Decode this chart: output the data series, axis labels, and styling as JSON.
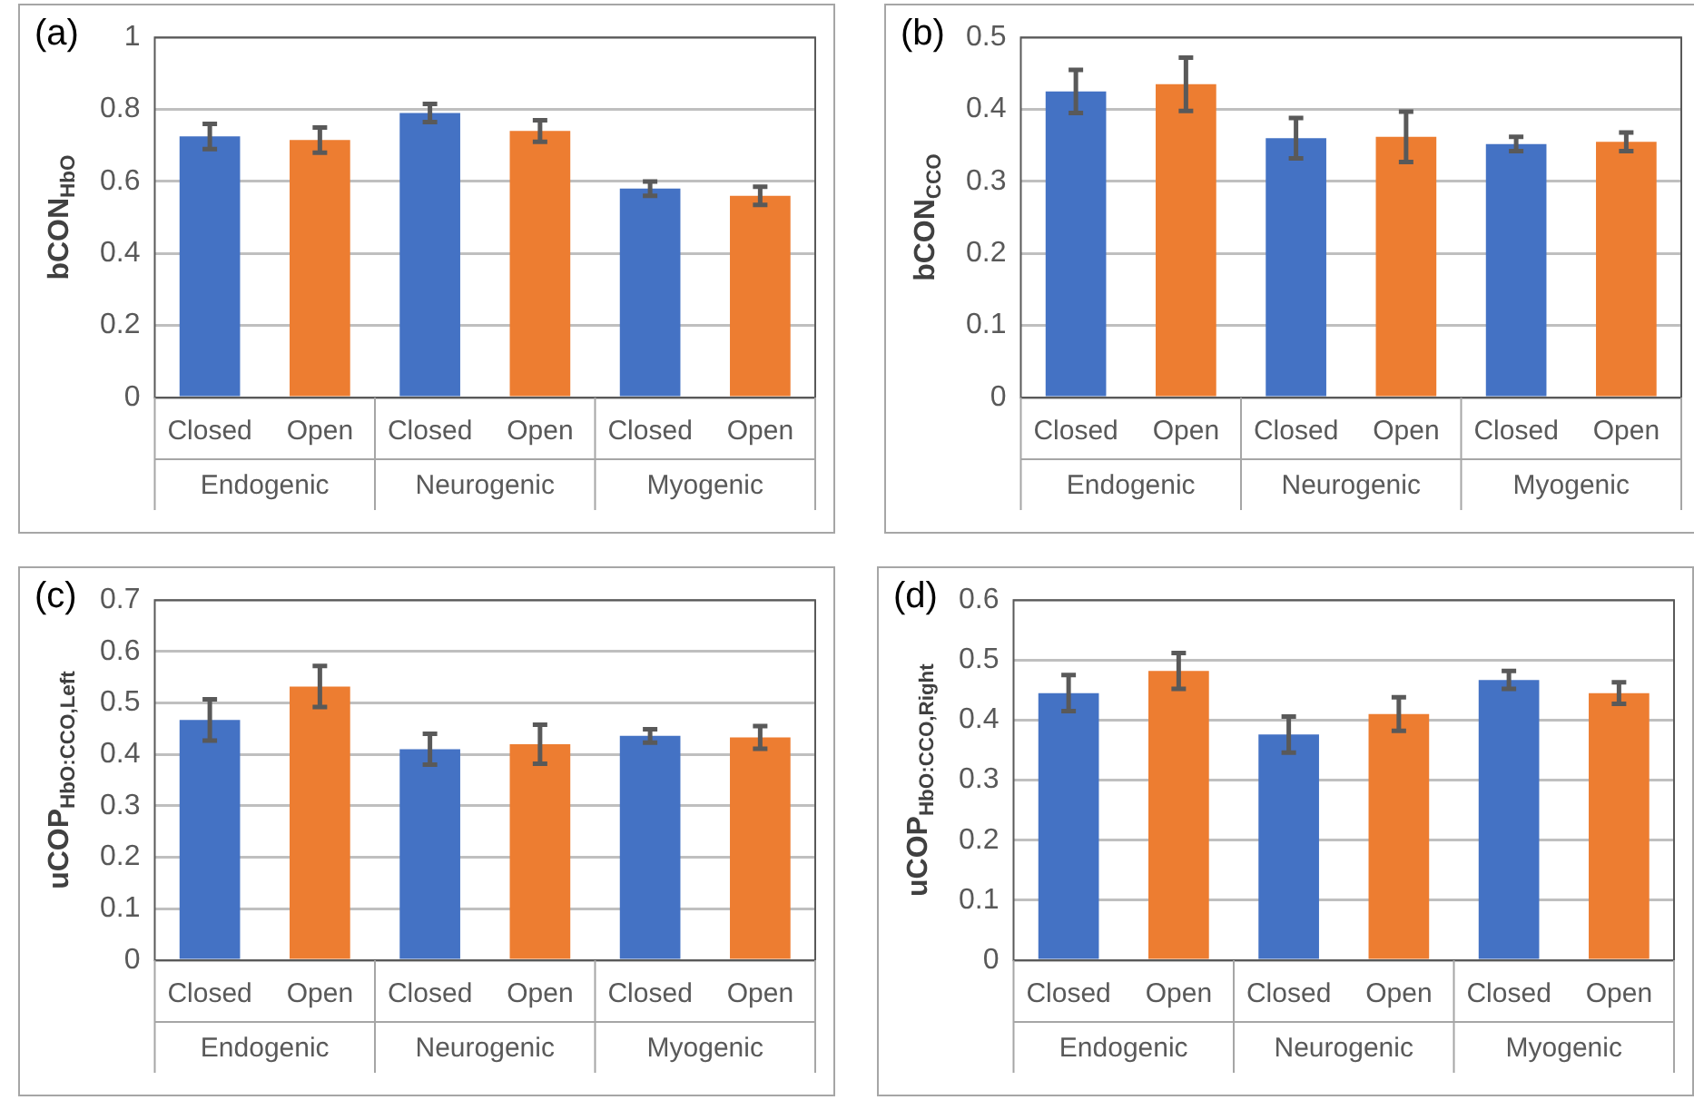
{
  "chart_data": [
    {
      "type": "bar",
      "title": "(a)",
      "ylabel": "bCON$_{HbO}$",
      "categories": [
        "Closed",
        "Open",
        "Closed",
        "Open",
        "Closed",
        "Open"
      ],
      "values": [
        0.725,
        0.715,
        0.79,
        0.74,
        0.58,
        0.56
      ],
      "errors": [
        0.035,
        0.035,
        0.025,
        0.03,
        0.02,
        0.025
      ],
      "colors": [
        "#4472c4",
        "#ed7d31",
        "#4472c4",
        "#ed7d31",
        "#4472c4",
        "#ed7d31"
      ],
      "ylim": [
        0,
        1
      ],
      "yticks": [
        0,
        0.2,
        0.4,
        0.6,
        0.8,
        1
      ],
      "grid": "y",
      "annotations": [
        "Endogenic",
        "Neurogenic",
        "Myogenic"
      ]
    },
    {
      "type": "bar",
      "title": "(b)",
      "ylabel": "bCON$_{CCO}$",
      "categories": [
        "Closed",
        "Open",
        "Closed",
        "Open",
        "Closed",
        "Open"
      ],
      "values": [
        0.425,
        0.435,
        0.36,
        0.362,
        0.352,
        0.355
      ],
      "errors": [
        0.03,
        0.037,
        0.028,
        0.035,
        0.01,
        0.013
      ],
      "colors": [
        "#4472c4",
        "#ed7d31",
        "#4472c4",
        "#ed7d31",
        "#4472c4",
        "#ed7d31"
      ],
      "ylim": [
        0,
        0.5
      ],
      "yticks": [
        0,
        0.1,
        0.2,
        0.3,
        0.4,
        0.5
      ],
      "grid": "y",
      "annotations": [
        "Endogenic",
        "Neurogenic",
        "Myogenic"
      ]
    },
    {
      "type": "bar",
      "title": "(c)",
      "ylabel": "uCOP$_{HbO:CCO,Left}$",
      "categories": [
        "Closed",
        "Open",
        "Closed",
        "Open",
        "Closed",
        "Open"
      ],
      "values": [
        0.467,
        0.532,
        0.41,
        0.42,
        0.436,
        0.433
      ],
      "errors": [
        0.04,
        0.04,
        0.03,
        0.038,
        0.013,
        0.022
      ],
      "colors": [
        "#4472c4",
        "#ed7d31",
        "#4472c4",
        "#ed7d31",
        "#4472c4",
        "#ed7d31"
      ],
      "ylim": [
        0,
        0.7
      ],
      "yticks": [
        0,
        0.1,
        0.2,
        0.3,
        0.4,
        0.5,
        0.6,
        0.7
      ],
      "grid": "y",
      "annotations": [
        "Endogenic",
        "Neurogenic",
        "Myogenic"
      ]
    },
    {
      "type": "bar",
      "title": "(d)",
      "ylabel": "uCOP$_{HbO:CCO,Right}$",
      "categories": [
        "Closed",
        "Open",
        "Closed",
        "Open",
        "Closed",
        "Open"
      ],
      "values": [
        0.445,
        0.482,
        0.376,
        0.41,
        0.467,
        0.445
      ],
      "errors": [
        0.03,
        0.03,
        0.03,
        0.028,
        0.015,
        0.018
      ],
      "colors": [
        "#4472c4",
        "#ed7d31",
        "#4472c4",
        "#ed7d31",
        "#4472c4",
        "#ed7d31"
      ],
      "ylim": [
        0,
        0.6
      ],
      "yticks": [
        0,
        0.1,
        0.2,
        0.3,
        0.4,
        0.5,
        0.6
      ],
      "grid": "y",
      "annotations": [
        "Endogenic",
        "Neurogenic",
        "Myogenic"
      ]
    }
  ]
}
